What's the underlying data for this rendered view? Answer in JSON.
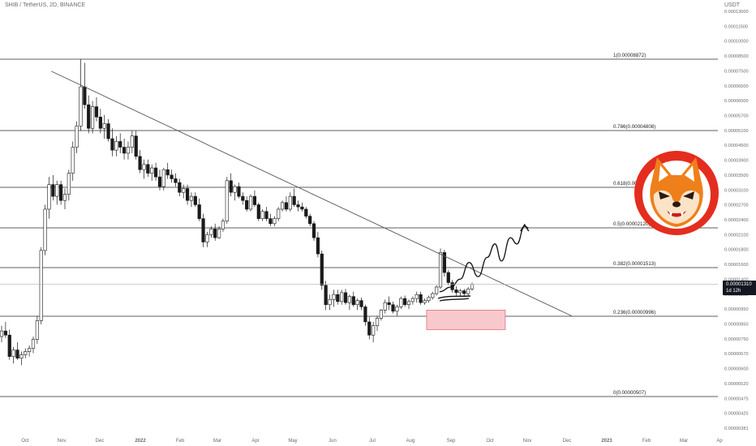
{
  "header": {
    "symbol": "SHIB",
    "sep1": " / ",
    "pair": "TetherUS",
    "sep2": ", ",
    "interval": "2D",
    "sep3": ", ",
    "exchange": "BINANCE",
    "currency": "USDT"
  },
  "last_price": {
    "value": "0.00001310",
    "countdown": "1d 12h"
  },
  "colors": {
    "candle": "#1a1a1a",
    "candle_up": "#ffffff",
    "fib_line": "#2a2a2a",
    "trendline": "#555555",
    "support_zone_fill": "#f7c9cd",
    "support_zone_border": "#e8707d",
    "axis_text": "#6b6b6b",
    "logo_red": "#e42d1f",
    "logo_orange": "#ef7f1a"
  },
  "chart_data": {
    "type": "candlestick",
    "title": "SHIB / TetherUS, 2D, BINANCE",
    "y_axis_ticks": [
      "0.00013000",
      "0.00011500",
      "0.00010000",
      "0.00008500",
      "0.00007500",
      "0.00006500",
      "0.00006000",
      "0.00005700",
      "0.00005100",
      "0.00004500",
      "0.00003900",
      "0.00003500",
      "0.00003100",
      "0.00002700",
      "0.00002400",
      "0.00002100",
      "0.00001800",
      "0.00001600",
      "0.00001400",
      "0.00001100",
      "0.00000950",
      "0.00000850",
      "0.00000750",
      "0.00000670",
      "0.00000600",
      "0.00000520",
      "0.00000475",
      "0.00000425",
      "0.00000381"
    ],
    "x_axis_ticks": [
      "Oct",
      "Nov",
      "Dec",
      "2022",
      "Feb",
      "Mar",
      "Apr",
      "May",
      "Jun",
      "Jul",
      "Aug",
      "Sep",
      "Oct",
      "Nov",
      "Dec",
      "2023",
      "Feb",
      "Mar",
      "Ap"
    ],
    "fib_levels": [
      {
        "ratio": 1,
        "label": "1(0.00008872)",
        "price": 8.872e-05
      },
      {
        "ratio": 0.786,
        "label": "0.786(0.00004808)",
        "price": 4.808e-05
      },
      {
        "ratio": 0.618,
        "label": "0.618(0.00003032)",
        "price": 3.032e-05
      },
      {
        "ratio": 0.5,
        "label": "0.5(0.00002120)",
        "price": 2.12e-05
      },
      {
        "ratio": 0.382,
        "label": "0.382(0.00001513)",
        "price": 1.513e-05
      },
      {
        "ratio": 0.236,
        "label": "0.236(0.00000996)",
        "price": 9.96e-06
      },
      {
        "ratio": 0,
        "label": "0(0.00000507)",
        "price": 5.07e-06
      }
    ],
    "current_price": 1.31e-05,
    "trendline": {
      "from": [
        "Oct 28 2021",
        8e-05
      ],
      "to": [
        "Dec 6 2022",
        9.96e-06
      ]
    },
    "support_zone": {
      "from": "Aug 15 2022",
      "to": "Oct 15 2022",
      "low": 8.9e-06,
      "high": 1.05e-05
    },
    "candles": [
      [
        8.4,
        9.2,
        8.0,
        8.8
      ],
      [
        8.8,
        9.5,
        8.3,
        8.5
      ],
      [
        8.5,
        8.9,
        6.9,
        7.1
      ],
      [
        7.1,
        7.7,
        6.7,
        7.5
      ],
      [
        7.5,
        8.0,
        6.9,
        7.0
      ],
      [
        7.0,
        7.4,
        6.6,
        7.2
      ],
      [
        7.2,
        7.6,
        7.0,
        7.4
      ],
      [
        7.4,
        7.8,
        7.1,
        7.6
      ],
      [
        7.6,
        8.4,
        7.3,
        8.2
      ],
      [
        8.2,
        10.0,
        7.9,
        9.6
      ],
      [
        9.6,
        18.0,
        9.3,
        17.5
      ],
      [
        17.5,
        26.0,
        16.8,
        25.0
      ],
      [
        25.0,
        33.0,
        23.0,
        31.0
      ],
      [
        31.0,
        33.5,
        27.0,
        28.0
      ],
      [
        28.0,
        32.0,
        26.0,
        31.0
      ],
      [
        31.0,
        32.0,
        26.0,
        27.0
      ],
      [
        27.0,
        30.0,
        25.0,
        28.5
      ],
      [
        28.5,
        35.0,
        27.0,
        34.0
      ],
      [
        34.0,
        44.0,
        32.0,
        42.0
      ],
      [
        42.0,
        52.0,
        40.0,
        50.0
      ],
      [
        50.0,
        88.72,
        48.0,
        70.0
      ],
      [
        70.0,
        86.0,
        58.0,
        60.0
      ],
      [
        60.0,
        65.0,
        47.0,
        49.0
      ],
      [
        49.0,
        62.0,
        47.0,
        59.0
      ],
      [
        59.0,
        64.0,
        52.0,
        54.0
      ],
      [
        54.0,
        58.0,
        47.0,
        49.0
      ],
      [
        49.0,
        55.0,
        45.0,
        51.0
      ],
      [
        51.0,
        53.0,
        44.0,
        45.0
      ],
      [
        45.0,
        49.0,
        39.0,
        41.0
      ],
      [
        41.0,
        46.0,
        39.0,
        44.0
      ],
      [
        44.0,
        47.0,
        40.0,
        42.0
      ],
      [
        42.0,
        45.0,
        38.0,
        40.0
      ],
      [
        40.0,
        44.0,
        38.0,
        42.0
      ],
      [
        42.0,
        48.0,
        40.0,
        46.0
      ],
      [
        46.0,
        48.0,
        38.0,
        39.0
      ],
      [
        39.0,
        41.0,
        34.0,
        35.0
      ],
      [
        35.0,
        38.0,
        32.5,
        36.5
      ],
      [
        36.5,
        38.0,
        33.0,
        34.0
      ],
      [
        34.0,
        36.5,
        32.0,
        35.5
      ],
      [
        35.5,
        37.0,
        32.0,
        33.0
      ],
      [
        33.0,
        35.0,
        29.5,
        30.5
      ],
      [
        30.5,
        35.5,
        29.5,
        35.0
      ],
      [
        35.0,
        37.0,
        32.5,
        33.5
      ],
      [
        33.5,
        35.0,
        31.5,
        32.5
      ],
      [
        32.5,
        34.0,
        30.5,
        31.5
      ],
      [
        31.5,
        32.5,
        28.0,
        29.0
      ],
      [
        29.0,
        31.0,
        27.5,
        30.0
      ],
      [
        30.0,
        31.0,
        26.0,
        27.0
      ],
      [
        27.0,
        29.0,
        25.5,
        28.0
      ],
      [
        28.0,
        29.0,
        25.5,
        26.0
      ],
      [
        26.0,
        27.5,
        22.5,
        23.0
      ],
      [
        23.0,
        24.0,
        18.0,
        18.8
      ],
      [
        18.8,
        20.5,
        18.0,
        20.0
      ],
      [
        20.0,
        21.5,
        19.5,
        21.0
      ],
      [
        21.0,
        22.0,
        19.0,
        19.5
      ],
      [
        19.5,
        21.5,
        19.3,
        21.0
      ],
      [
        21.0,
        23.0,
        20.5,
        22.5
      ],
      [
        22.5,
        33.0,
        22.0,
        32.0
      ],
      [
        32.0,
        34.0,
        28.0,
        29.0
      ],
      [
        29.0,
        31.0,
        27.0,
        30.5
      ],
      [
        30.5,
        31.5,
        27.5,
        28.0
      ],
      [
        28.0,
        29.0,
        26.0,
        27.0
      ],
      [
        27.0,
        28.0,
        24.5,
        25.0
      ],
      [
        25.0,
        28.5,
        24.5,
        28.0
      ],
      [
        28.0,
        29.5,
        25.5,
        26.0
      ],
      [
        26.0,
        26.5,
        22.5,
        23.0
      ],
      [
        23.0,
        25.0,
        22.5,
        24.5
      ],
      [
        24.5,
        25.5,
        22.5,
        23.0
      ],
      [
        23.0,
        24.0,
        21.5,
        22.0
      ],
      [
        22.0,
        23.5,
        21.5,
        23.0
      ],
      [
        23.0,
        25.5,
        22.5,
        25.0
      ],
      [
        25.0,
        27.0,
        24.5,
        26.5
      ],
      [
        26.5,
        28.0,
        24.5,
        25.0
      ],
      [
        25.0,
        29.0,
        24.5,
        28.0
      ],
      [
        28.0,
        30.0,
        25.5,
        26.0
      ],
      [
        26.0,
        27.0,
        24.5,
        25.5
      ],
      [
        25.5,
        26.5,
        24.5,
        25.0
      ],
      [
        25.0,
        25.5,
        23.0,
        23.5
      ],
      [
        23.5,
        24.0,
        21.5,
        22.0
      ],
      [
        22.0,
        22.5,
        19.0,
        19.5
      ],
      [
        19.5,
        20.5,
        16.5,
        17.0
      ],
      [
        17.0,
        17.5,
        12.5,
        13.0
      ],
      [
        13.0,
        13.5,
        10.5,
        11.0
      ],
      [
        11.0,
        12.0,
        10.5,
        11.5
      ],
      [
        11.5,
        12.5,
        10.8,
        12.0
      ],
      [
        12.0,
        12.5,
        11.0,
        11.3
      ],
      [
        11.3,
        12.5,
        11.0,
        12.2
      ],
      [
        12.2,
        12.6,
        11.0,
        11.2
      ],
      [
        11.2,
        12.0,
        10.5,
        11.8
      ],
      [
        11.8,
        12.3,
        10.8,
        11.0
      ],
      [
        11.0,
        11.6,
        10.5,
        11.4
      ],
      [
        11.4,
        11.7,
        10.5,
        10.8
      ],
      [
        10.8,
        11.0,
        9.2,
        9.5
      ],
      [
        9.5,
        9.9,
        8.2,
        8.5
      ],
      [
        8.5,
        9.5,
        8.0,
        9.2
      ],
      [
        9.2,
        10.0,
        8.8,
        9.8
      ],
      [
        9.8,
        10.6,
        9.6,
        10.5
      ],
      [
        10.5,
        11.5,
        10.2,
        11.2
      ],
      [
        11.2,
        11.8,
        10.5,
        11.0
      ],
      [
        11.0,
        11.3,
        10.2,
        10.4
      ],
      [
        10.4,
        11.0,
        10.0,
        10.8
      ],
      [
        10.8,
        11.8,
        10.6,
        11.6
      ],
      [
        11.6,
        11.9,
        10.8,
        11.0
      ],
      [
        11.0,
        11.5,
        10.6,
        11.3
      ],
      [
        11.3,
        11.8,
        11.0,
        11.6
      ],
      [
        11.6,
        12.3,
        11.2,
        12.0
      ],
      [
        12.0,
        12.3,
        11.0,
        11.2
      ],
      [
        11.2,
        11.6,
        11.0,
        11.4
      ],
      [
        11.4,
        11.9,
        11.2,
        11.7
      ],
      [
        11.7,
        12.3,
        11.5,
        12.1
      ],
      [
        12.1,
        13.0,
        11.9,
        12.8
      ],
      [
        12.8,
        17.8,
        12.6,
        17.2
      ],
      [
        17.2,
        17.6,
        14.0,
        14.5
      ],
      [
        14.5,
        14.8,
        13.0,
        13.3
      ],
      [
        13.3,
        13.6,
        12.2,
        12.5
      ],
      [
        12.5,
        12.9,
        11.9,
        12.2
      ],
      [
        12.2,
        12.6,
        11.9,
        12.4
      ],
      [
        12.4,
        12.6,
        11.8,
        12.1
      ],
      [
        12.1,
        12.8,
        11.9,
        12.6
      ],
      [
        12.6,
        13.3,
        12.4,
        13.1
      ]
    ],
    "projection": [
      [
        "Aug 25 2022",
        1.23e-05
      ],
      [
        "Sep 3 2022",
        1.28e-05
      ],
      [
        "Sep 10 2022",
        1.37e-05
      ],
      [
        "Sep 17 2022",
        1.58e-05
      ],
      [
        "Sep 24 2022",
        1.4e-05
      ],
      [
        "Oct 1 2022",
        1.65e-05
      ],
      [
        "Oct 7 2022",
        1.85e-05
      ],
      [
        "Oct 12 2022",
        1.6e-05
      ],
      [
        "Oct 19 2022",
        1.95e-05
      ],
      [
        "Oct 24 2022",
        1.85e-05
      ],
      [
        "Oct 30 2022",
        2.15e-05
      ],
      [
        "Nov 2 2022",
        2.12e-05
      ]
    ]
  },
  "shapes": {
    "projection_arrow": "arrow-up",
    "logo": "shiba-inu-face"
  }
}
